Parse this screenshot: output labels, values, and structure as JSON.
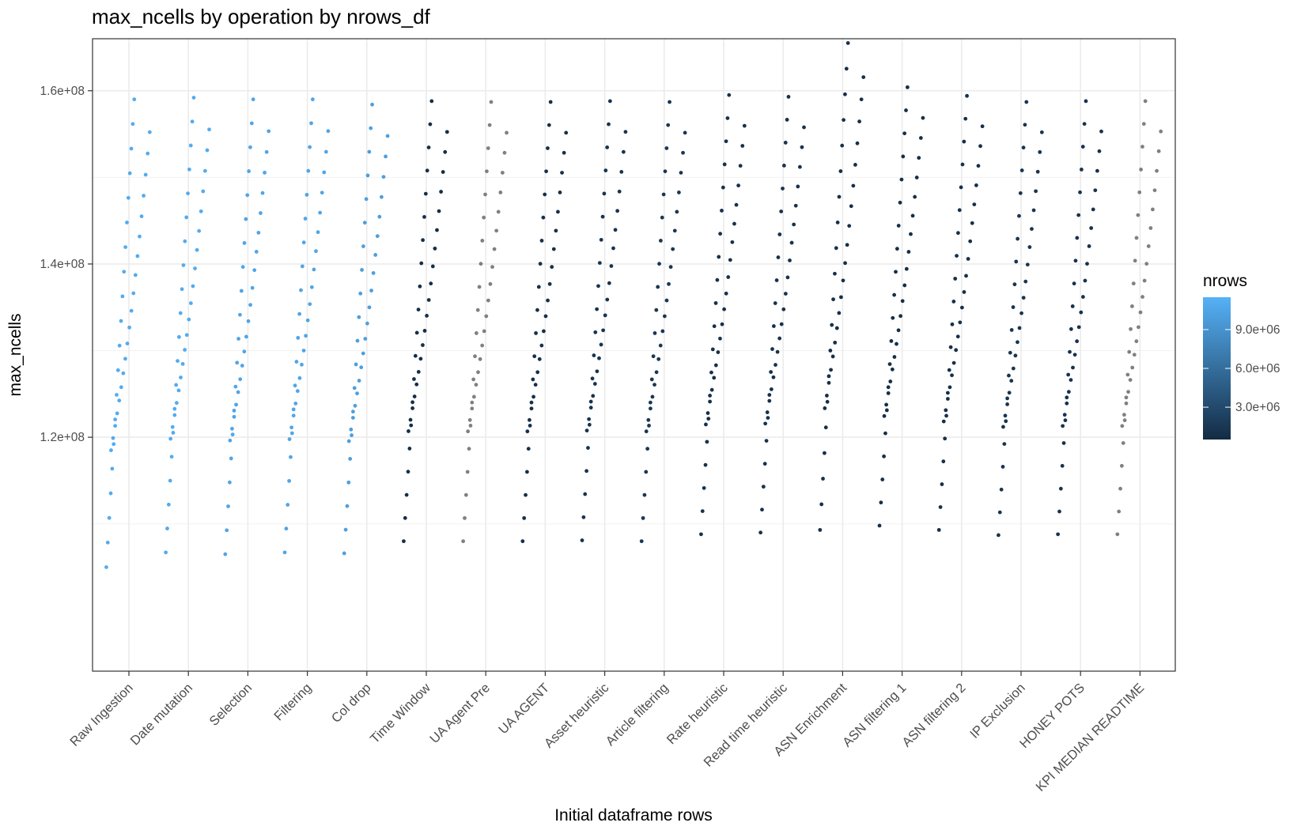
{
  "chart_data": {
    "type": "scatter",
    "title": "max_ncells by operation by nrows_df",
    "xlabel": "Initial dataframe rows",
    "ylabel": "max_ncells",
    "categories": [
      "Raw Ingestion",
      "Date mutation",
      "Selection",
      "Filtering",
      "Col drop",
      "Time Window",
      "UA Agent Pre",
      "UA AGENT",
      "Asset heuristic",
      "Article filtering",
      "Rate heuristic",
      "Read time heuristic",
      "ASN Enrichment",
      "ASN filtering 1",
      "ASN filtering 2",
      "IP Exclusion",
      "HONEY POTS",
      "KPI MEDIAN READTIME"
    ],
    "ylim": [
      93000000,
      166000000
    ],
    "y_ticks": [
      120000000,
      140000000,
      160000000
    ],
    "y_tick_labels": [
      "1.2e+08",
      "1.4e+08",
      "1.6e+08"
    ],
    "grid": true,
    "legend": {
      "title": "nrows",
      "position": "right",
      "type": "colorbar",
      "range": [
        500000,
        11500000
      ],
      "ticks": [
        3000000,
        6000000,
        9000000
      ],
      "tick_labels": [
        "3.0e+06",
        "6.0e+06",
        "9.0e+06"
      ],
      "low_color": "#132b43",
      "high_color": "#56b1f7",
      "missing_color": "#808080"
    },
    "series_layout": "each category shows about 40 points in two jittered diagonal strands: an upper strand of 20 points rising from the low value to the high value and a shifted lower strand of 20 points; point color encodes nrows",
    "groups": [
      {
        "category": "Raw Ingestion",
        "low": 105000000,
        "high": 159000000,
        "color_value": 11000000
      },
      {
        "category": "Date mutation",
        "low": 106700000,
        "high": 159200000,
        "color_value": 11000000
      },
      {
        "category": "Selection",
        "low": 106500000,
        "high": 159000000,
        "color_value": 10500000
      },
      {
        "category": "Filtering",
        "low": 106700000,
        "high": 159000000,
        "color_value": 10500000
      },
      {
        "category": "Col drop",
        "low": 106600000,
        "high": 158400000,
        "color_value": 10000000
      },
      {
        "category": "Time Window",
        "low": 108000000,
        "high": 158800000,
        "color_value": 800000
      },
      {
        "category": "UA Agent Pre",
        "low": 108000000,
        "high": 158700000,
        "color_value": null
      },
      {
        "category": "UA AGENT",
        "low": 108000000,
        "high": 158700000,
        "color_value": 900000
      },
      {
        "category": "Asset heuristic",
        "low": 108100000,
        "high": 158800000,
        "color_value": 1200000
      },
      {
        "category": "Article filtering",
        "low": 108000000,
        "high": 158700000,
        "color_value": 1500000
      },
      {
        "category": "Rate heuristic",
        "low": 108800000,
        "high": 159500000,
        "color_value": 1000000
      },
      {
        "category": "Read time heuristic",
        "low": 109000000,
        "high": 159300000,
        "color_value": 1100000
      },
      {
        "category": "ASN Enrichment",
        "low": 109300000,
        "high": 165500000,
        "color_value": 900000
      },
      {
        "category": "ASN filtering 1",
        "low": 109800000,
        "high": 160400000,
        "color_value": 800000
      },
      {
        "category": "ASN filtering 2",
        "low": 109300000,
        "high": 159400000,
        "color_value": 900000
      },
      {
        "category": "IP Exclusion",
        "low": 108700000,
        "high": 158700000,
        "color_value": 1300000
      },
      {
        "category": "HONEY POTS",
        "low": 108800000,
        "high": 158800000,
        "color_value": 1100000
      },
      {
        "category": "KPI MEDIAN READTIME",
        "low": 108800000,
        "high": 158800000,
        "color_value": null
      }
    ],
    "strands": {
      "points_per_strand": 20,
      "upper_strand_x_offset": [
        -0.38,
        0.09
      ],
      "lower_strand_x_offset": [
        -0.3,
        0.35
      ],
      "lower_strand_y_fraction": [
        0.25,
        0.93
      ]
    }
  }
}
